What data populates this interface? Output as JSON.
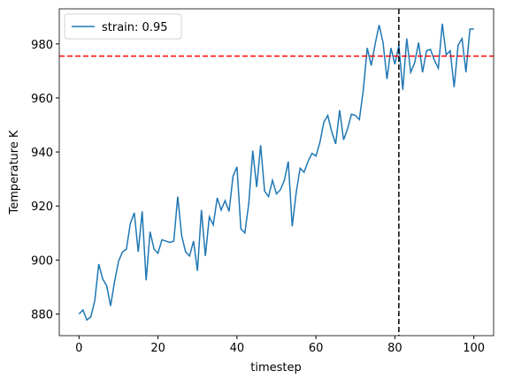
{
  "chart_data": {
    "type": "line",
    "xlabel": "timestep",
    "ylabel": "Temperature K",
    "x": [
      0,
      1,
      2,
      3,
      4,
      5,
      6,
      7,
      8,
      9,
      10,
      11,
      12,
      13,
      14,
      15,
      16,
      17,
      18,
      19,
      20,
      21,
      22,
      23,
      24,
      25,
      26,
      27,
      28,
      29,
      30,
      31,
      32,
      33,
      34,
      35,
      36,
      37,
      38,
      39,
      40,
      41,
      42,
      43,
      44,
      45,
      46,
      47,
      48,
      49,
      50,
      51,
      52,
      53,
      54,
      55,
      56,
      57,
      58,
      59,
      60,
      61,
      62,
      63,
      64,
      65,
      66,
      67,
      68,
      69,
      70,
      71,
      72,
      73,
      74,
      75,
      76,
      77,
      78,
      79,
      80,
      81,
      82,
      83,
      84,
      85,
      86,
      87,
      88,
      89,
      90,
      91,
      92,
      93,
      94,
      95,
      96,
      97,
      98,
      99,
      100
    ],
    "series": [
      {
        "name": "strain: 0.95",
        "color": "#1f77b4",
        "values": [
          880,
          881.5,
          877.8,
          879,
          885,
          898.5,
          893,
          890.5,
          883,
          892,
          899.5,
          903,
          904,
          913.5,
          917.5,
          903,
          918,
          892.5,
          910.5,
          904,
          902.5,
          907.5,
          907,
          906.5,
          907,
          923.5,
          909,
          903,
          901.5,
          907,
          896,
          918.5,
          901.5,
          916,
          913,
          923,
          918.5,
          922,
          918,
          931,
          934.5,
          911.5,
          910,
          921,
          940.5,
          927,
          942.5,
          925.5,
          923.5,
          929.5,
          924.5,
          926,
          929.5,
          936.5,
          912.5,
          925,
          934,
          932.5,
          936.5,
          939.5,
          938.5,
          943.5,
          951,
          953.5,
          947.5,
          943,
          955.5,
          944.5,
          948.5,
          954,
          953.5,
          952,
          963,
          978.5,
          972,
          980,
          987,
          980.5,
          967,
          978.5,
          972.5,
          979.5,
          963,
          982,
          969.5,
          973,
          980.5,
          969.5,
          977.5,
          978,
          974,
          971,
          987.5,
          976,
          977.5,
          964,
          979.5,
          982,
          969.5,
          985.5,
          985.5
        ]
      }
    ],
    "hline": {
      "value": 975.5,
      "color": "#ff0000"
    },
    "vline": {
      "value": 81,
      "color": "#000000"
    },
    "xlim": [
      -5,
      105
    ],
    "ylim": [
      872,
      993
    ],
    "xticks": [
      0,
      20,
      40,
      60,
      80,
      100
    ],
    "yticks": [
      880,
      900,
      920,
      940,
      960,
      980
    ],
    "legend": "upper left"
  }
}
